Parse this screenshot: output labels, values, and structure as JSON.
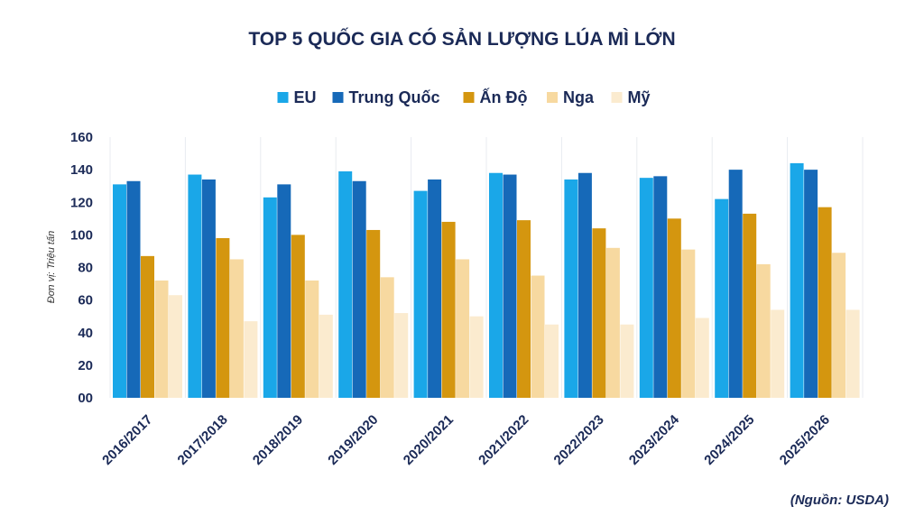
{
  "chart_data": {
    "type": "bar",
    "title": "TOP 5 QUỐC GIA CÓ SẢN LƯỢNG LÚA MÌ LỚN",
    "ylabel": "Đơn vị: Triệu tấn",
    "source": "(Nguồn: USDA)",
    "ylim": [
      0,
      160
    ],
    "yticks": [
      "00",
      "20",
      "40",
      "60",
      "80",
      "100",
      "120",
      "140",
      "160"
    ],
    "ytick_values": [
      0,
      20,
      40,
      60,
      80,
      100,
      120,
      140,
      160
    ],
    "grid": "vertical",
    "legend_position": "top",
    "categories": [
      "2016/2017",
      "2017/2018",
      "2018/2019",
      "2019/2020",
      "2020/2021",
      "2021/2022",
      "2022/2023",
      "2023/2024",
      "2024/2025",
      "2025/2026"
    ],
    "series": [
      {
        "name": "EU",
        "color": "#1aa7e8",
        "values": [
          131,
          137,
          123,
          139,
          127,
          138,
          134,
          135,
          122,
          144
        ]
      },
      {
        "name": "Trung Quốc",
        "color": "#1669b8",
        "values": [
          133,
          134,
          131,
          133,
          134,
          137,
          138,
          136,
          140,
          140
        ]
      },
      {
        "name": "Ấn Độ",
        "color": "#d4960f",
        "values": [
          87,
          98,
          100,
          103,
          108,
          109,
          104,
          110,
          113,
          117
        ]
      },
      {
        "name": "Nga",
        "color": "#f7d9a0",
        "values": [
          72,
          85,
          72,
          74,
          85,
          75,
          92,
          91,
          82,
          89
        ]
      },
      {
        "name": "Mỹ",
        "color": "#fbebcf",
        "values": [
          63,
          47,
          51,
          52,
          50,
          45,
          45,
          49,
          54,
          54
        ]
      }
    ]
  }
}
